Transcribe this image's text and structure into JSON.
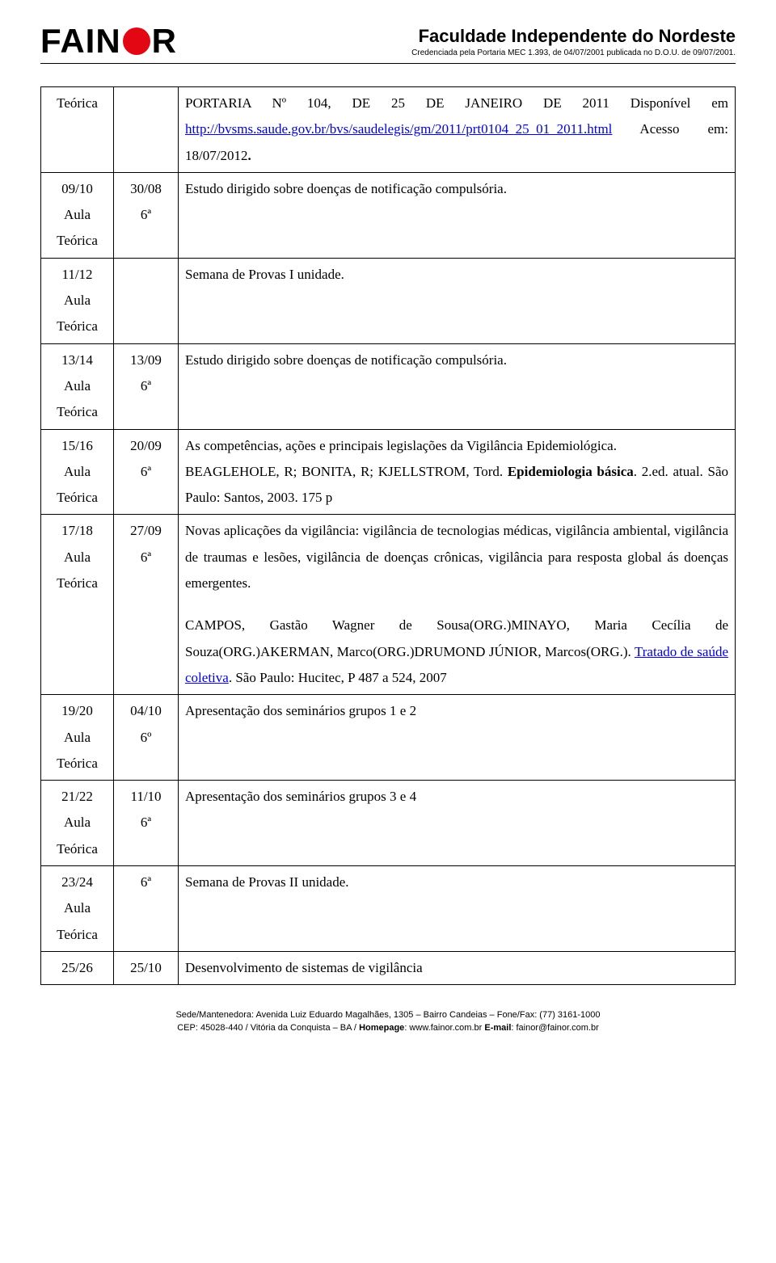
{
  "header": {
    "logo_text_pre": "FAIN",
    "logo_text_post": "R",
    "title": "Faculdade Independente do Nordeste",
    "subtitle": "Credenciada pela Portaria MEC 1.393, de 04/07/2001 publicada no D.O.U. de 09/07/2001."
  },
  "rows": [
    {
      "a": [
        "Teórica"
      ],
      "b": [],
      "c_parts": [
        {
          "t": "PORTARIA Nº 104, DE 25 DE JANEIRO DE 2011 Disponível em "
        },
        {
          "t": "http://bvsms.saude.gov.br/bvs/saudelegis/gm/2011/prt0104_25_01_2011.html",
          "link": true
        },
        {
          "t": " Acesso em: 18/07/2012"
        },
        {
          "t": ".",
          "bold": true
        }
      ]
    },
    {
      "a": [
        "09/10",
        "Aula",
        "Teórica"
      ],
      "b": [
        "30/08",
        "6ª"
      ],
      "c_parts": [
        {
          "t": "Estudo dirigido sobre doenças de notificação compulsória."
        }
      ]
    },
    {
      "a": [
        "11/12",
        "Aula",
        "Teórica"
      ],
      "b": [],
      "c_parts": [
        {
          "t": "Semana de Provas I unidade."
        }
      ]
    },
    {
      "a": [
        "13/14",
        "Aula",
        "Teórica"
      ],
      "b": [
        "13/09",
        "6ª"
      ],
      "c_parts": [
        {
          "t": "Estudo dirigido sobre doenças de notificação compulsória."
        }
      ]
    },
    {
      "a": [
        "15/16",
        "Aula",
        "Teórica"
      ],
      "b": [
        "20/09",
        "6ª"
      ],
      "c_parts": [
        {
          "t": "As competências, ações e principais legislações da Vigilância Epidemiológica."
        },
        {
          "br": true
        },
        {
          "t": "BEAGLEHOLE, R; BONITA, R; KJELLSTROM, Tord. "
        },
        {
          "t": "Epidemiologia básica",
          "bold": true
        },
        {
          "t": ". 2.ed. atual. São Paulo: Santos, 2003. 175 p"
        }
      ]
    },
    {
      "a": [
        "17/18",
        "Aula",
        "Teórica"
      ],
      "b": [
        "27/09",
        "6ª"
      ],
      "c_parts": [
        {
          "t": "Novas aplicações da vigilância: vigilância de tecnologias médicas, vigilância ambiental, vigilância de traumas e lesões, vigilância de doenças crônicas, vigilância para resposta global ás doenças emergentes."
        },
        {
          "spacer": true
        },
        {
          "t": "CAMPOS, Gastão Wagner de Sousa(ORG.)MINAYO, Maria Cecília de Souza(ORG.)AKERMAN, Marco(ORG.)DRUMOND JÚNIOR, Marcos(ORG.). "
        },
        {
          "t": "Tratado de saúde coletiva",
          "link": true
        },
        {
          "t": ".    São Paulo: Hucitec, P 487 a 524, 2007"
        }
      ]
    },
    {
      "a": [
        "19/20",
        "Aula",
        "Teórica"
      ],
      "b": [
        "04/10",
        "6º"
      ],
      "c_parts": [
        {
          "t": "Apresentação dos seminários grupos 1 e 2"
        }
      ]
    },
    {
      "a": [
        "21/22",
        "Aula",
        "Teórica"
      ],
      "b": [
        "11/10",
        "6ª"
      ],
      "c_parts": [
        {
          "t": "Apresentação dos seminários grupos 3 e 4"
        }
      ]
    },
    {
      "a": [
        "23/24",
        "Aula",
        "Teórica"
      ],
      "b": [
        "6ª"
      ],
      "c_parts": [
        {
          "t": "Semana de Provas II unidade."
        }
      ]
    },
    {
      "a": [
        "25/26"
      ],
      "b": [
        "25/10"
      ],
      "c_parts": [
        {
          "t": "Desenvolvimento de sistemas de vigilância"
        }
      ]
    }
  ],
  "footer": {
    "line1": "Sede/Mantenedora: Avenida Luiz Eduardo Magalhães, 1305 – Bairro Candeias – Fone/Fax: (77) 3161-1000",
    "line2_pre": "CEP: 45028-440 / Vitória da Conquista – BA / ",
    "line2_hp_label": "Homepage",
    "line2_hp": ": www.fainor.com.br ",
    "line2_em_label": "E-mail",
    "line2_em": ": fainor@fainor.com.br"
  }
}
